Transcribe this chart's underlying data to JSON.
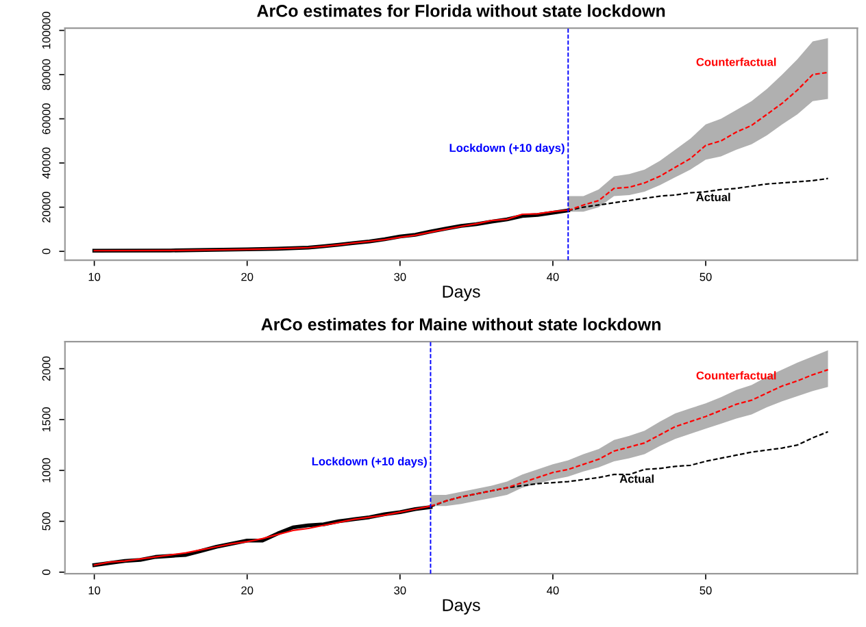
{
  "chart_data": [
    {
      "type": "line",
      "title": "ArCo estimates for Florida without state lockdown",
      "xlabel": "Days",
      "xlim": [
        8.08,
        59.92
      ],
      "xticks": [
        10,
        20,
        30,
        40,
        50
      ],
      "ylim": [
        -4000,
        101000
      ],
      "yticks": [
        0,
        20000,
        40000,
        60000,
        80000,
        100000
      ],
      "grid": false,
      "legend": false,
      "marker": "none",
      "ref_lines": [
        {
          "axis": "x",
          "value": 41,
          "label": "Lockdown (+10 days)",
          "color": "#0000ff",
          "line_style": "dashed"
        }
      ],
      "series": [
        {
          "color": "#000000",
          "line_style": "solid",
          "x": [
            10,
            15,
            20,
            22,
            24,
            25,
            26,
            27,
            28,
            29,
            30,
            31,
            32,
            33,
            34,
            35,
            36,
            37,
            38,
            39,
            40,
            41
          ],
          "values": [
            300,
            400,
            900,
            1200,
            1700,
            2300,
            3000,
            3800,
            4500,
            5500,
            6700,
            7500,
            9000,
            10300,
            11500,
            12300,
            13500,
            14500,
            16000,
            16500,
            17500,
            18500
          ]
        },
        {
          "color": "#ff0000",
          "line_style": "solid",
          "x": [
            10,
            15,
            20,
            22,
            24,
            25,
            26,
            27,
            28,
            29,
            30,
            31,
            32,
            33,
            34,
            35,
            36,
            37,
            38,
            39,
            40,
            41
          ],
          "values": [
            300,
            400,
            900,
            1200,
            1700,
            2300,
            3000,
            3800,
            4500,
            5300,
            6400,
            7300,
            8700,
            10000,
            11300,
            12500,
            14000,
            14500,
            16800,
            17000,
            18000,
            18700
          ]
        },
        {
          "name": "Actual",
          "color": "#000000",
          "line_style": "dashed",
          "x": [
            41,
            42,
            43,
            44,
            45,
            46,
            47,
            48,
            49,
            50,
            51,
            52,
            53,
            54,
            55,
            56,
            57,
            58
          ],
          "values": [
            18500,
            20000,
            21000,
            22000,
            23000,
            24000,
            25000,
            25500,
            26500,
            27000,
            28000,
            28500,
            29500,
            30500,
            31000,
            31500,
            32000,
            33000
          ]
        },
        {
          "name": "Counterfactual",
          "color": "#ff0000",
          "line_style": "dashed",
          "x": [
            41,
            42,
            43,
            44,
            45,
            46,
            47,
            48,
            49,
            50,
            51,
            52,
            53,
            54,
            55,
            56,
            57,
            58
          ],
          "values": [
            18500,
            21000,
            23000,
            28500,
            29000,
            31000,
            34000,
            38000,
            42000,
            48000,
            50000,
            54000,
            57000,
            62000,
            67000,
            73000,
            80000,
            81000
          ],
          "lower": [
            18000,
            18000,
            20000,
            25000,
            25500,
            27000,
            30000,
            33500,
            37000,
            41500,
            43000,
            46000,
            48500,
            52500,
            57500,
            62000,
            68000,
            69000
          ],
          "upper": [
            25000,
            25000,
            28000,
            34000,
            35000,
            37000,
            41000,
            46000,
            51000,
            57500,
            60000,
            64000,
            68000,
            73500,
            80000,
            87000,
            95000,
            96500
          ]
        }
      ]
    },
    {
      "type": "line",
      "title": "ArCo estimates for Maine without state lockdown",
      "xlabel": "Days",
      "xlim": [
        8.08,
        59.92
      ],
      "xticks": [
        10,
        20,
        30,
        40,
        50
      ],
      "ylim": [
        -15,
        2265
      ],
      "yticks": [
        0,
        500,
        1000,
        1500,
        2000
      ],
      "grid": false,
      "legend": false,
      "marker": "none",
      "ref_lines": [
        {
          "axis": "x",
          "value": 32,
          "label": "Lockdown (+10 days)",
          "color": "#0000ff",
          "line_style": "dashed"
        }
      ],
      "series": [
        {
          "color": "#000000",
          "line_style": "solid",
          "x": [
            10,
            11,
            12,
            13,
            14,
            15,
            16,
            17,
            18,
            19,
            20,
            21,
            22,
            23,
            24,
            25,
            26,
            27,
            28,
            29,
            30,
            31,
            32
          ],
          "values": [
            70,
            90,
            110,
            120,
            150,
            160,
            170,
            210,
            250,
            280,
            310,
            310,
            380,
            440,
            460,
            470,
            500,
            520,
            540,
            570,
            590,
            620,
            640
          ]
        },
        {
          "color": "#ff0000",
          "line_style": "solid",
          "x": [
            10,
            11,
            12,
            13,
            14,
            15,
            16,
            17,
            18,
            19,
            20,
            21,
            22,
            23,
            24,
            25,
            26,
            27,
            28,
            29,
            30,
            31,
            32
          ],
          "values": [
            70,
            100,
            110,
            130,
            150,
            170,
            190,
            220,
            250,
            280,
            300,
            330,
            370,
            410,
            430,
            460,
            490,
            520,
            540,
            560,
            590,
            620,
            650
          ]
        },
        {
          "name": "Actual",
          "color": "#000000",
          "line_style": "dashed",
          "x": [
            32,
            33,
            34,
            35,
            36,
            37,
            38,
            39,
            40,
            41,
            42,
            43,
            44,
            45,
            46,
            47,
            48,
            49,
            50,
            51,
            52,
            53,
            54,
            55,
            56,
            57,
            58
          ],
          "values": [
            640,
            700,
            740,
            770,
            800,
            830,
            850,
            870,
            880,
            890,
            910,
            930,
            960,
            960,
            1010,
            1020,
            1040,
            1050,
            1090,
            1120,
            1150,
            1180,
            1200,
            1220,
            1250,
            1320,
            1380
          ]
        },
        {
          "name": "Counterfactual",
          "color": "#ff0000",
          "line_style": "dashed",
          "x": [
            32,
            33,
            34,
            35,
            36,
            37,
            38,
            39,
            40,
            41,
            42,
            43,
            44,
            45,
            46,
            47,
            48,
            49,
            50,
            51,
            52,
            53,
            54,
            55,
            56,
            57,
            58
          ],
          "values": [
            650,
            700,
            740,
            770,
            800,
            830,
            880,
            930,
            980,
            1010,
            1060,
            1110,
            1190,
            1230,
            1270,
            1350,
            1430,
            1480,
            1530,
            1590,
            1650,
            1690,
            1760,
            1830,
            1880,
            1940,
            1990
          ],
          "lower": [
            650,
            650,
            670,
            700,
            730,
            760,
            830,
            870,
            910,
            940,
            990,
            1030,
            1090,
            1120,
            1160,
            1240,
            1310,
            1360,
            1410,
            1460,
            1510,
            1550,
            1620,
            1680,
            1730,
            1780,
            1820
          ],
          "upper": [
            760,
            760,
            790,
            820,
            850,
            890,
            960,
            1010,
            1060,
            1100,
            1160,
            1210,
            1300,
            1340,
            1390,
            1480,
            1560,
            1610,
            1660,
            1720,
            1790,
            1840,
            1920,
            1990,
            2060,
            2120,
            2180
          ]
        }
      ]
    }
  ]
}
